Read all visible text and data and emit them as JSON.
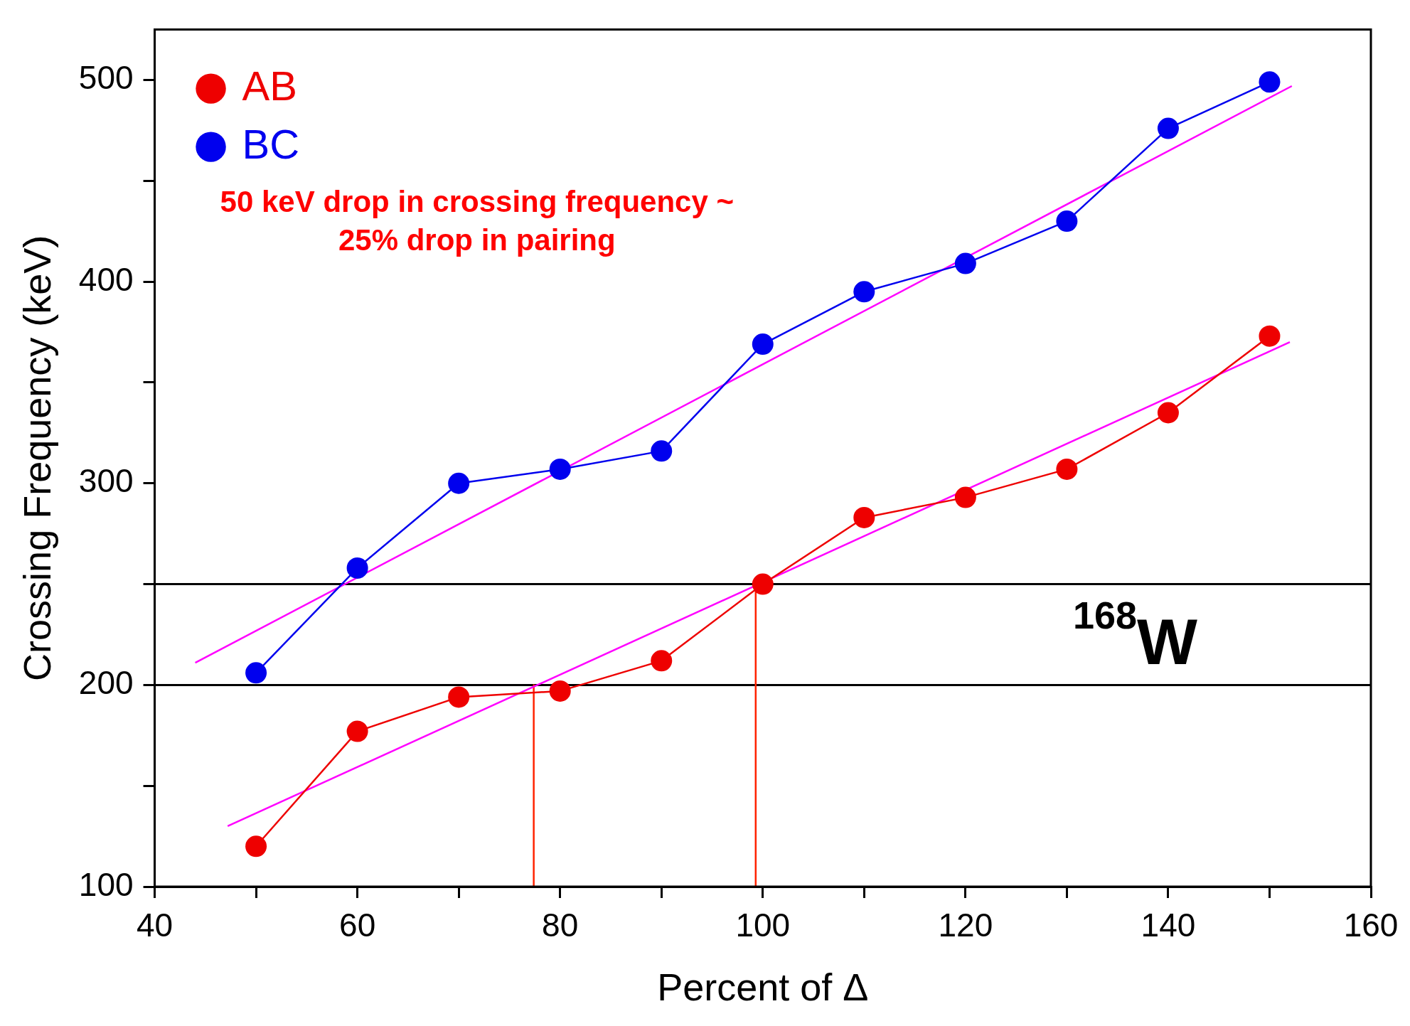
{
  "chart_data": {
    "type": "line",
    "xlabel": "Percent of Δ",
    "ylabel": "Crossing Frequency (keV)",
    "x": [
      50,
      60,
      70,
      80,
      90,
      100,
      110,
      120,
      130,
      140,
      150
    ],
    "series": [
      {
        "name": "AB",
        "color": "#ee0000",
        "marker": "circle",
        "values": [
          120,
          177,
          194,
          197,
          212,
          250,
          283,
          293,
          307,
          335,
          373
        ]
      },
      {
        "name": "BC",
        "color": "#0000ee",
        "marker": "circle",
        "values": [
          206,
          258,
          300,
          307,
          316,
          369,
          395,
          409,
          430,
          476,
          499
        ]
      },
      {
        "type": "line",
        "color": "#ff00ff",
        "marker": "none",
        "x": [
          47.2,
          152
        ],
        "values": [
          130,
          370
        ]
      },
      {
        "type": "line",
        "color": "#ff00ff",
        "marker": "none",
        "x": [
          44,
          152.2
        ],
        "values": [
          211,
          497
        ]
      },
      {
        "type": "line",
        "color": "#ff2200",
        "marker": "none",
        "x": [
          77.4,
          77.4
        ],
        "values": [
          200,
          100
        ]
      },
      {
        "type": "line",
        "color": "#ff2200",
        "marker": "none",
        "x": [
          99.3,
          99.3
        ],
        "values": [
          250,
          100
        ]
      }
    ],
    "ref_lines": [
      {
        "axis": "y",
        "value": 250,
        "color": "#000000"
      },
      {
        "axis": "y",
        "value": 200,
        "color": "#000000"
      }
    ],
    "annotations": [
      "50 keV drop in crossing frequency ~ 25% drop in pairing",
      "$^{168}$W"
    ],
    "xlim": [
      40,
      160
    ],
    "ylim": [
      100,
      525
    ],
    "xticks": [
      40,
      {
        "value": 50,
        "label": null
      },
      60,
      {
        "value": 70,
        "label": null
      },
      80,
      {
        "value": 90,
        "label": null
      },
      100,
      {
        "value": 110,
        "label": null
      },
      120,
      {
        "value": 130,
        "label": null
      },
      140,
      {
        "value": 150,
        "label": null
      },
      160
    ],
    "yticks": [
      100,
      {
        "value": 150,
        "label": null
      },
      200,
      {
        "value": 250,
        "label": null
      },
      300,
      {
        "value": 350,
        "label": null
      },
      400,
      {
        "value": 450,
        "label": null
      },
      500
    ],
    "grid": false,
    "legend": "top left"
  }
}
